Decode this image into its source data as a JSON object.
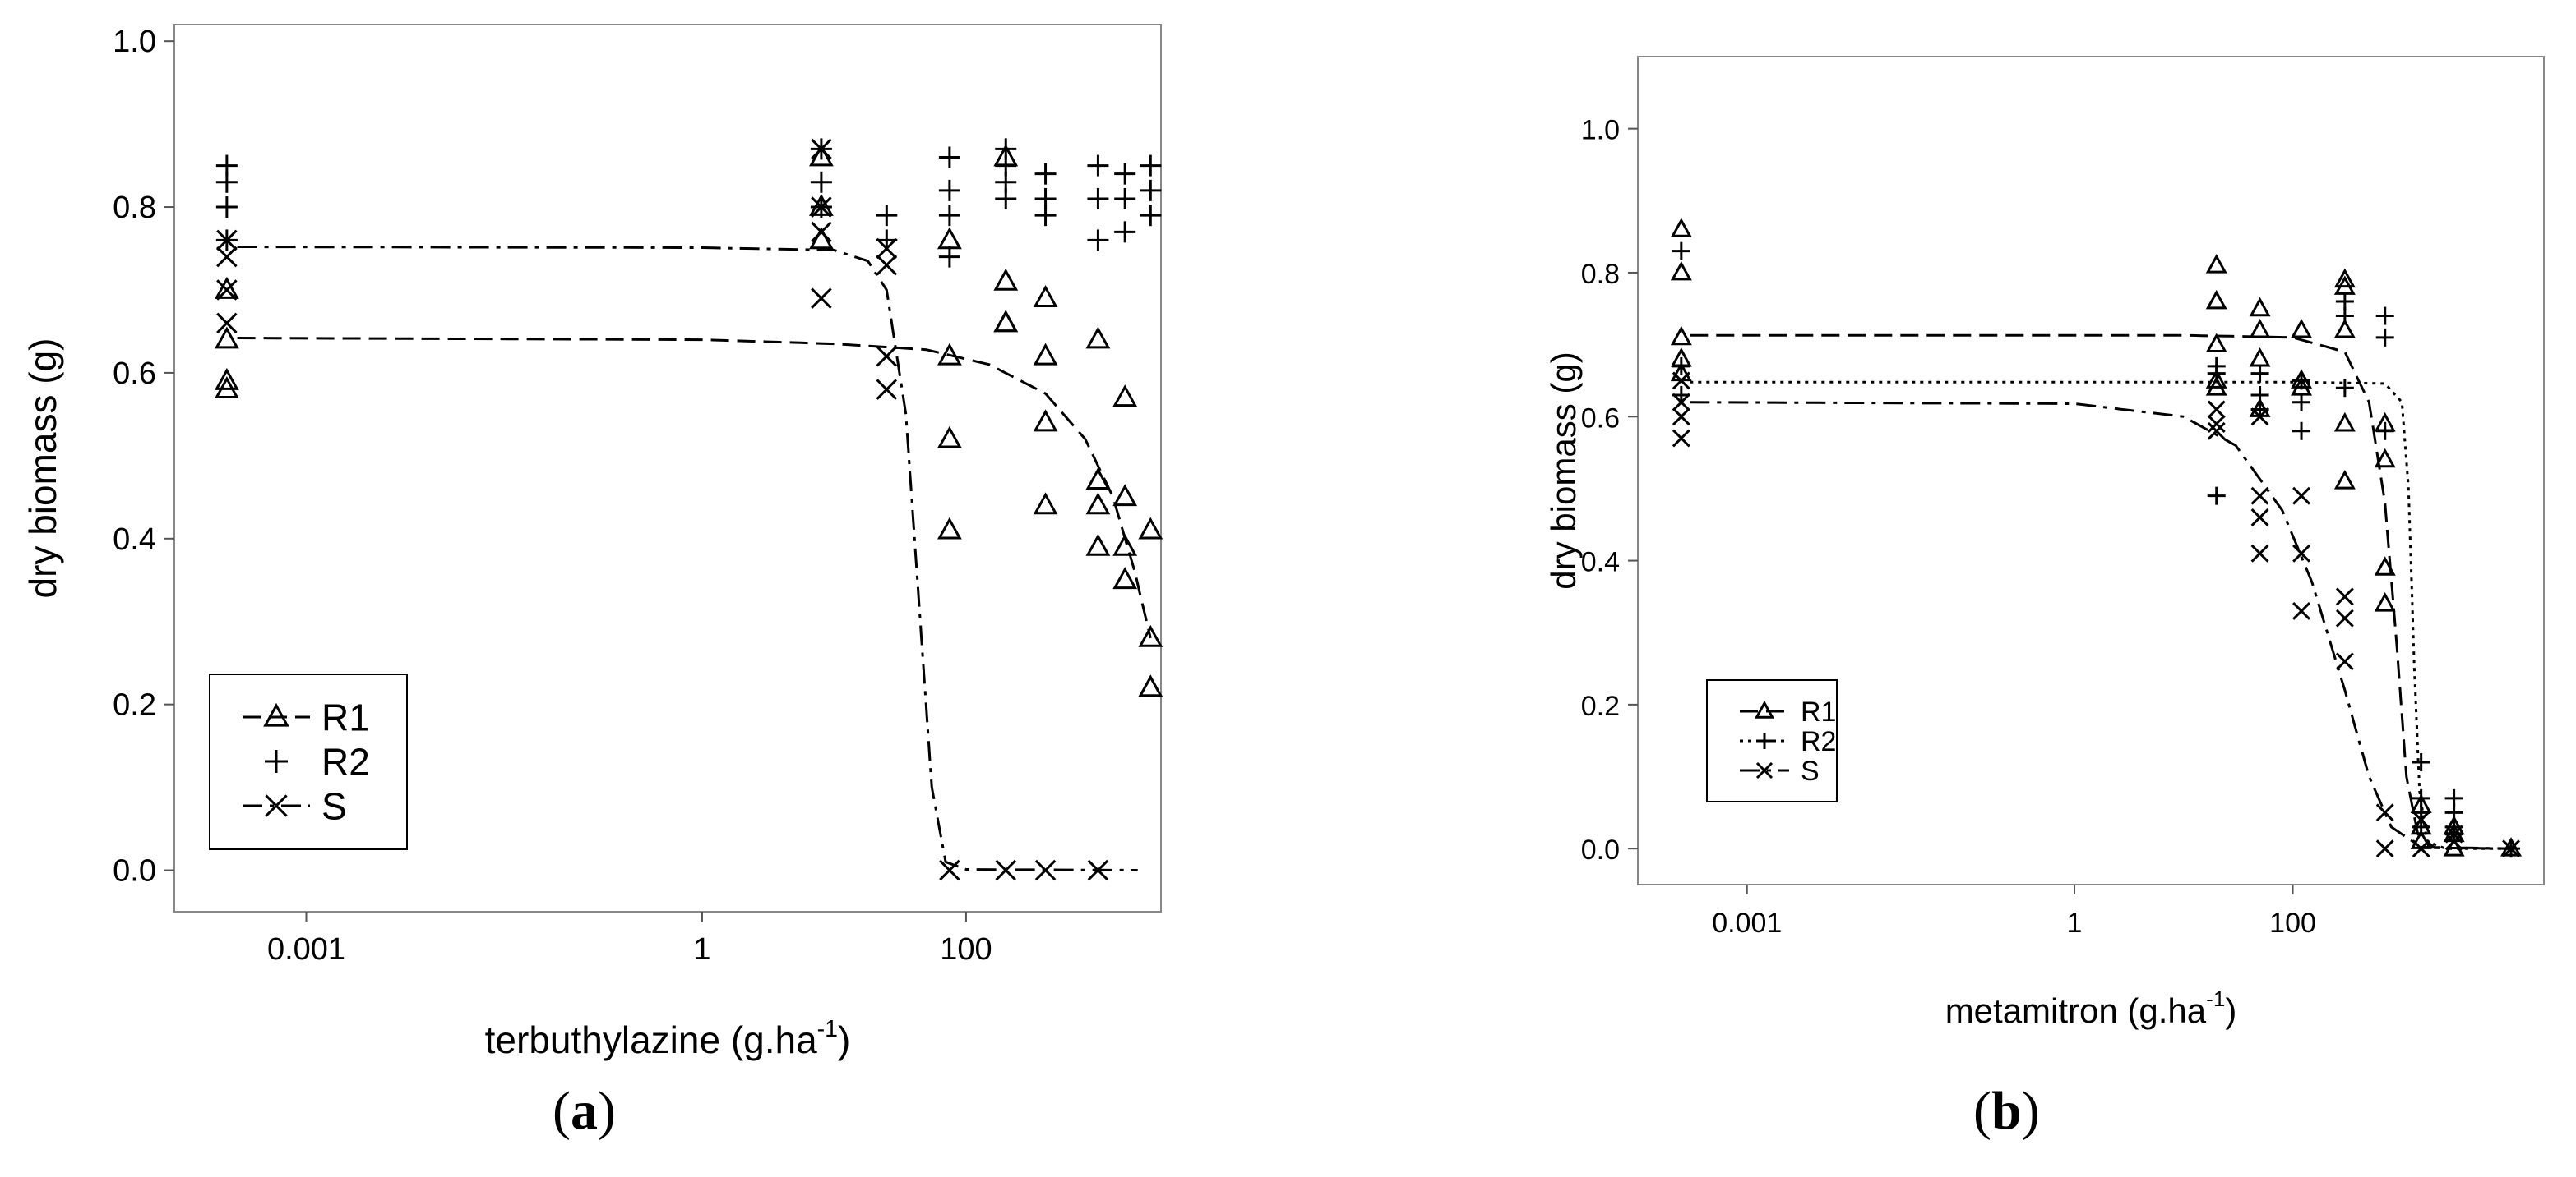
{
  "chart_data": [
    {
      "type": "scatter",
      "panel_label": "a",
      "xlabel": "terbuthylazine (g.ha",
      "xlabel_sup": "-1",
      "xlabel_close": ")",
      "ylabel": "dry biomass (g)",
      "x_scale": "log",
      "xlim": [
        0.0001,
        3000
      ],
      "ylim": [
        -0.05,
        1.02
      ],
      "x_ticks": [
        0.001,
        1,
        100
      ],
      "x_tick_labels": [
        "0.001",
        "1",
        "100"
      ],
      "y_ticks": [
        0,
        0.2,
        0.4,
        0.6,
        0.8,
        1.0
      ],
      "y_tick_labels": [
        "0.0",
        "0.2",
        "0.4",
        "0.6",
        "0.8",
        "1.0"
      ],
      "legend_position": "bottom-left",
      "series": [
        {
          "name": "R1",
          "marker": "triangle",
          "line": "dashed",
          "points": [
            [
              0.00025,
              0.64
            ],
            [
              0.00025,
              0.59
            ],
            [
              0.00025,
              0.58
            ],
            [
              0.00025,
              0.7
            ],
            [
              8,
              0.86
            ],
            [
              8,
              0.8
            ],
            [
              8,
              0.76
            ],
            [
              75,
              0.76
            ],
            [
              75,
              0.62
            ],
            [
              75,
              0.52
            ],
            [
              75,
              0.41
            ],
            [
              200,
              0.86
            ],
            [
              200,
              0.71
            ],
            [
              200,
              0.66
            ],
            [
              200,
              0.66
            ],
            [
              400,
              0.69
            ],
            [
              400,
              0.62
            ],
            [
              400,
              0.54
            ],
            [
              400,
              0.44
            ],
            [
              1000,
              0.64
            ],
            [
              1000,
              0.47
            ],
            [
              1000,
              0.44
            ],
            [
              1000,
              0.39
            ],
            [
              1600,
              0.57
            ],
            [
              1600,
              0.45
            ],
            [
              1600,
              0.39
            ],
            [
              1600,
              0.35
            ],
            [
              2500,
              0.41
            ],
            [
              2500,
              0.28
            ],
            [
              2500,
              0.22
            ],
            [
              2500,
              0.22
            ]
          ],
          "curve": [
            [
              0.0003,
              0.642
            ],
            [
              1,
              0.64
            ],
            [
              10,
              0.635
            ],
            [
              50,
              0.628
            ],
            [
              150,
              0.61
            ],
            [
              400,
              0.575
            ],
            [
              800,
              0.52
            ],
            [
              1300,
              0.45
            ],
            [
              1900,
              0.36
            ],
            [
              2500,
              0.28
            ]
          ]
        },
        {
          "name": "R2",
          "marker": "plus",
          "line": "none",
          "points": [
            [
              0.00025,
              0.85
            ],
            [
              0.00025,
              0.83
            ],
            [
              0.00025,
              0.8
            ],
            [
              0.00025,
              0.76
            ],
            [
              8,
              0.87
            ],
            [
              8,
              0.83
            ],
            [
              8,
              0.8
            ],
            [
              25,
              0.79
            ],
            [
              25,
              0.76
            ],
            [
              75,
              0.86
            ],
            [
              75,
              0.82
            ],
            [
              75,
              0.79
            ],
            [
              75,
              0.74
            ],
            [
              200,
              0.87
            ],
            [
              200,
              0.85
            ],
            [
              200,
              0.83
            ],
            [
              200,
              0.81
            ],
            [
              400,
              0.84
            ],
            [
              400,
              0.81
            ],
            [
              400,
              0.79
            ],
            [
              1000,
              0.85
            ],
            [
              1000,
              0.81
            ],
            [
              1000,
              0.76
            ],
            [
              1600,
              0.84
            ],
            [
              1600,
              0.81
            ],
            [
              1600,
              0.77
            ],
            [
              2500,
              0.85
            ],
            [
              2500,
              0.82
            ],
            [
              2500,
              0.79
            ]
          ],
          "curve": []
        },
        {
          "name": "S",
          "marker": "x",
          "line": "dash-dot",
          "points": [
            [
              0.00025,
              0.76
            ],
            [
              0.00025,
              0.74
            ],
            [
              0.00025,
              0.7
            ],
            [
              0.00025,
              0.66
            ],
            [
              8,
              0.87
            ],
            [
              8,
              0.8
            ],
            [
              8,
              0.77
            ],
            [
              8,
              0.69
            ],
            [
              25,
              0.75
            ],
            [
              25,
              0.73
            ],
            [
              25,
              0.62
            ],
            [
              25,
              0.58
            ],
            [
              75,
              0.0
            ],
            [
              200,
              0.0
            ],
            [
              400,
              0.0
            ],
            [
              1000,
              0.0
            ]
          ],
          "curve": [
            [
              0.0003,
              0.752
            ],
            [
              1,
              0.751
            ],
            [
              10,
              0.748
            ],
            [
              18,
              0.735
            ],
            [
              25,
              0.7
            ],
            [
              35,
              0.55
            ],
            [
              45,
              0.3
            ],
            [
              55,
              0.1
            ],
            [
              70,
              0.01
            ],
            [
              100,
              0.001
            ],
            [
              2000,
              0.0
            ]
          ]
        }
      ]
    },
    {
      "type": "scatter",
      "panel_label": "b",
      "xlabel": "metamitron (g.ha",
      "xlabel_sup": "-1",
      "xlabel_close": ")",
      "ylabel": "dry biomass (g)",
      "x_scale": "log",
      "xlim": [
        0.0001,
        20000
      ],
      "ylim": [
        -0.05,
        1.1
      ],
      "x_ticks": [
        0.001,
        1,
        100
      ],
      "x_tick_labels": [
        "0.001",
        "1",
        "100"
      ],
      "y_ticks": [
        0,
        0.2,
        0.4,
        0.6,
        0.8,
        1.0
      ],
      "y_tick_labels": [
        "0.0",
        "0.2",
        "0.4",
        "0.6",
        "0.8",
        "1.0"
      ],
      "legend_position": "bottom-left",
      "series": [
        {
          "name": "R1",
          "marker": "triangle",
          "line": "dashed",
          "points": [
            [
              0.00025,
              0.86
            ],
            [
              0.00025,
              0.8
            ],
            [
              0.00025,
              0.71
            ],
            [
              0.00025,
              0.68
            ],
            [
              0.00025,
              0.66
            ],
            [
              20,
              0.81
            ],
            [
              20,
              0.76
            ],
            [
              20,
              0.7
            ],
            [
              20,
              0.65
            ],
            [
              20,
              0.64
            ],
            [
              50,
              0.75
            ],
            [
              50,
              0.72
            ],
            [
              50,
              0.68
            ],
            [
              50,
              0.61
            ],
            [
              120,
              0.72
            ],
            [
              120,
              0.65
            ],
            [
              120,
              0.64
            ],
            [
              300,
              0.79
            ],
            [
              300,
              0.78
            ],
            [
              300,
              0.72
            ],
            [
              300,
              0.59
            ],
            [
              300,
              0.51
            ],
            [
              700,
              0.59
            ],
            [
              700,
              0.54
            ],
            [
              700,
              0.39
            ],
            [
              700,
              0.34
            ],
            [
              1500,
              0.06
            ],
            [
              1500,
              0.03
            ],
            [
              1500,
              0.01
            ],
            [
              3000,
              0.03
            ],
            [
              3000,
              0.02
            ],
            [
              3000,
              0.0
            ],
            [
              10000,
              0.0
            ]
          ],
          "curve": [
            [
              0.0003,
              0.713
            ],
            [
              10,
              0.713
            ],
            [
              100,
              0.71
            ],
            [
              300,
              0.69
            ],
            [
              500,
              0.62
            ],
            [
              700,
              0.48
            ],
            [
              900,
              0.28
            ],
            [
              1100,
              0.1
            ],
            [
              1400,
              0.02
            ],
            [
              2000,
              0.001
            ],
            [
              10000,
              0.0
            ]
          ]
        },
        {
          "name": "R2",
          "marker": "plus",
          "line": "dotted",
          "points": [
            [
              0.00025,
              0.83
            ],
            [
              0.00025,
              0.67
            ],
            [
              0.00025,
              0.63
            ],
            [
              20,
              0.67
            ],
            [
              20,
              0.66
            ],
            [
              20,
              0.49
            ],
            [
              50,
              0.66
            ],
            [
              50,
              0.63
            ],
            [
              50,
              0.61
            ],
            [
              120,
              0.65
            ],
            [
              120,
              0.62
            ],
            [
              120,
              0.58
            ],
            [
              300,
              0.76
            ],
            [
              300,
              0.74
            ],
            [
              300,
              0.64
            ],
            [
              700,
              0.74
            ],
            [
              700,
              0.71
            ],
            [
              700,
              0.58
            ],
            [
              1500,
              0.12
            ],
            [
              1500,
              0.07
            ],
            [
              1500,
              0.05
            ],
            [
              1500,
              0.03
            ],
            [
              3000,
              0.07
            ],
            [
              3000,
              0.05
            ],
            [
              3000,
              0.03
            ],
            [
              3000,
              0.02
            ],
            [
              10000,
              0.0
            ]
          ],
          "curve": [
            [
              0.0003,
              0.648
            ],
            [
              100,
              0.648
            ],
            [
              700,
              0.646
            ],
            [
              1000,
              0.62
            ],
            [
              1150,
              0.5
            ],
            [
              1300,
              0.25
            ],
            [
              1450,
              0.08
            ],
            [
              1700,
              0.01
            ],
            [
              2500,
              0.0
            ],
            [
              10000,
              0.0
            ]
          ]
        },
        {
          "name": "S",
          "marker": "x",
          "line": "dash-dot",
          "points": [
            [
              0.00025,
              0.65
            ],
            [
              0.00025,
              0.62
            ],
            [
              0.00025,
              0.6
            ],
            [
              0.00025,
              0.57
            ],
            [
              20,
              0.61
            ],
            [
              20,
              0.59
            ],
            [
              20,
              0.58
            ],
            [
              50,
              0.6
            ],
            [
              50,
              0.49
            ],
            [
              50,
              0.46
            ],
            [
              50,
              0.41
            ],
            [
              120,
              0.49
            ],
            [
              120,
              0.41
            ],
            [
              120,
              0.33
            ],
            [
              300,
              0.35
            ],
            [
              300,
              0.32
            ],
            [
              300,
              0.26
            ],
            [
              700,
              0.05
            ],
            [
              700,
              0.0
            ],
            [
              1500,
              0.04
            ],
            [
              1500,
              0.0
            ],
            [
              3000,
              0.02
            ],
            [
              3000,
              0.01
            ],
            [
              10000,
              0.0
            ]
          ],
          "curve": [
            [
              0.0003,
              0.62
            ],
            [
              1,
              0.618
            ],
            [
              10,
              0.6
            ],
            [
              30,
              0.56
            ],
            [
              80,
              0.47
            ],
            [
              150,
              0.37
            ],
            [
              300,
              0.22
            ],
            [
              500,
              0.1
            ],
            [
              800,
              0.03
            ],
            [
              1500,
              0.002
            ],
            [
              10000,
              0.0
            ]
          ]
        }
      ]
    }
  ]
}
